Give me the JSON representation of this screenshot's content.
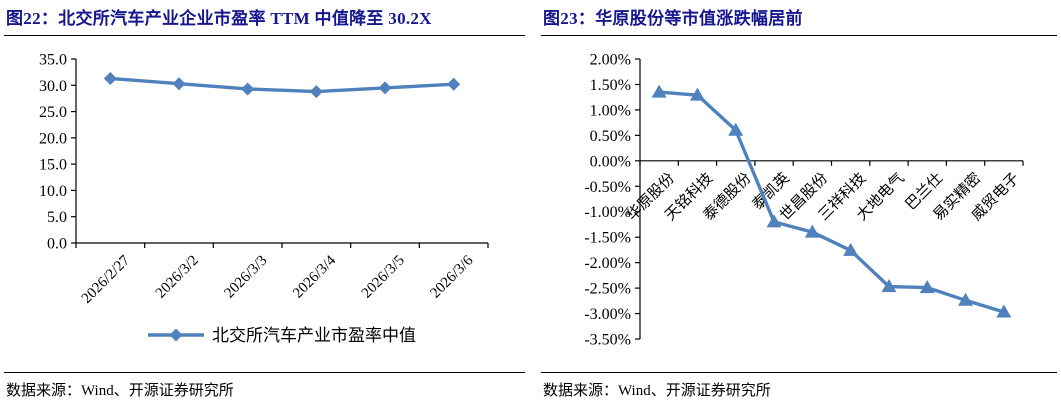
{
  "colors": {
    "title_navy": "#16168F",
    "series_blue": "#4F81BD",
    "axis_black": "#000000"
  },
  "panels": [
    {
      "title": "图22：北交所汽车产业企业市盈率 TTM 中值降至 30.2X",
      "source": "数据来源：Wind、开源证券研究所"
    },
    {
      "title": "图23：华原股份等市值涨跌幅居前",
      "source": "数据来源：Wind、开源证券研究所"
    }
  ],
  "chart_data": [
    {
      "type": "line",
      "title": "北交所汽车产业企业市盈率TTM中值",
      "categories": [
        "2026/2/27",
        "2026/3/2",
        "2026/3/3",
        "2026/3/4",
        "2026/3/5",
        "2026/3/6"
      ],
      "values": [
        31.3,
        30.3,
        29.3,
        28.8,
        29.5,
        30.2
      ],
      "ylim": [
        0,
        35
      ],
      "ytick_step": 5,
      "ytick_format": "fixed1",
      "marker": "diamond",
      "grid": false,
      "legend": [
        "北交所汽车产业市盈率中值"
      ],
      "legend_position": "bottom",
      "xlabel": "",
      "ylabel": ""
    },
    {
      "type": "line",
      "title": "华原股份等市值涨跌幅居前",
      "categories": [
        "华原股份",
        "天铭科技",
        "泰德股份",
        "泰凯英",
        "世昌股份",
        "三祥科技",
        "大地电气",
        "巴兰仕",
        "易实精密",
        "威贸电子"
      ],
      "values": [
        1.35,
        1.29,
        0.6,
        -1.2,
        -1.4,
        -1.76,
        -2.47,
        -2.49,
        -2.74,
        -2.97
      ],
      "unit": "%",
      "ylim": [
        -3.5,
        2.0
      ],
      "ytick_step": 0.5,
      "ytick_format": "percent2",
      "marker": "triangle",
      "grid": false,
      "legend": [],
      "xlabel": "",
      "ylabel": ""
    }
  ]
}
